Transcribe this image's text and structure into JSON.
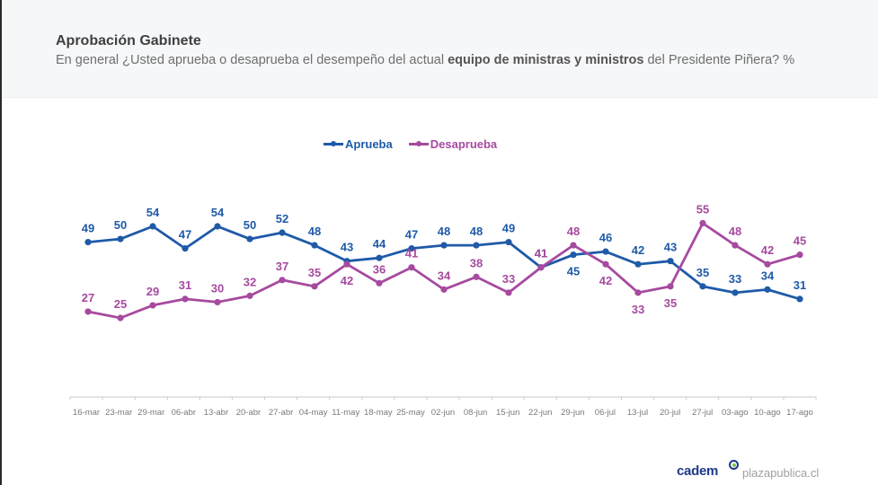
{
  "header": {
    "title": "Aprobación Gabinete",
    "subtitle_pre": "En general ¿Usted aprueba o desaprueba el desempeño del actual ",
    "subtitle_bold": "equipo de ministras y ministros",
    "subtitle_post": " del Presidente Piñera? %"
  },
  "footer": {
    "logo": "cadem",
    "site": "plazapublica.cl"
  },
  "chart_data": {
    "type": "line",
    "title": "Aprobación Gabinete",
    "xlabel": "",
    "ylabel": "%",
    "grid": false,
    "legend_position": "top-center",
    "categories": [
      "16-mar",
      "23-mar",
      "29-mar",
      "06-abr",
      "13-abr",
      "20-abr",
      "27-abr",
      "04-may",
      "11-may",
      "18-may",
      "25-may",
      "02-jun",
      "08-jun",
      "15-jun",
      "22-jun",
      "29-jun",
      "06-jul",
      "13-jul",
      "20-jul",
      "27-jul",
      "03-ago",
      "10-ago",
      "17-ago"
    ],
    "series": [
      {
        "name": "Aprueba",
        "color": "#1f5aa8",
        "values": [
          49,
          50,
          54,
          47,
          54,
          50,
          52,
          48,
          43,
          44,
          47,
          48,
          48,
          49,
          41,
          45,
          46,
          42,
          43,
          35,
          33,
          34,
          31
        ],
        "label_pos": [
          "above",
          "above",
          "above",
          "above",
          "above",
          "above",
          "above",
          "above",
          "above",
          "above",
          "above",
          "above",
          "above",
          "above",
          "above",
          "below",
          "above",
          "above",
          "above",
          "above",
          "above",
          "above",
          "above"
        ]
      },
      {
        "name": "Desaprueba",
        "color": "#a64a9f",
        "values": [
          27,
          25,
          29,
          31,
          30,
          32,
          37,
          35,
          42,
          36,
          41,
          34,
          38,
          33,
          41,
          48,
          42,
          33,
          35,
          55,
          48,
          42,
          45
        ],
        "label_pos": [
          "above",
          "above",
          "above",
          "above",
          "above",
          "above",
          "above",
          "above",
          "below",
          "above",
          "above",
          "above",
          "above",
          "above",
          "above",
          "above",
          "below",
          "below",
          "below",
          "above",
          "above",
          "above",
          "above"
        ]
      }
    ],
    "ylim": [
      20,
      60
    ]
  }
}
